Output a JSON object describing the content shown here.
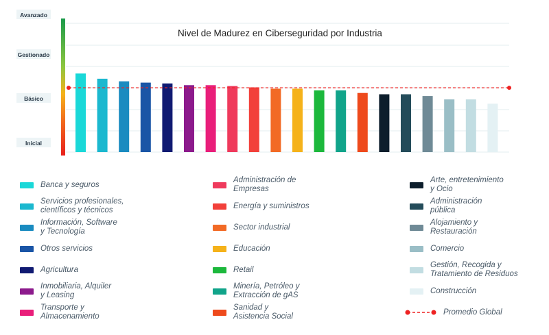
{
  "chart_data": {
    "type": "bar",
    "title": "Nivel de Madurez en Ciberseguridad por Industria",
    "y_levels": [
      "Inicial",
      "Básico",
      "Gestionado",
      "Avanzado"
    ],
    "ylim": [
      0,
      3
    ],
    "grid": true,
    "categories": [
      "Banca y seguros",
      "Servicios profesionales, científicos y técnicos",
      "Información, Software y Tecnología",
      "Otros servicios",
      "Agricultura",
      "Inmobiliaria, Alquiler y Leasing",
      "Transporte y Almacenamiento",
      "Administración de Empresas",
      "Energía y suministros",
      "Sector industrial",
      "Educación",
      "Retail",
      "Minería, Petróleo y Extracción de gAS",
      "Sanidad y Asistencia Social",
      "Arte, entretenimiento y Ocio",
      "Administración pública",
      "Alojamiento y Restauración",
      "Comercio",
      "Gestión, Recogida y Tratamiento de Residuos",
      "Construcción"
    ],
    "values": [
      1.82,
      1.7,
      1.64,
      1.61,
      1.59,
      1.55,
      1.55,
      1.53,
      1.5,
      1.47,
      1.47,
      1.43,
      1.43,
      1.37,
      1.34,
      1.34,
      1.3,
      1.22,
      1.22,
      1.12
    ],
    "colors": [
      "#1ad8d8",
      "#1bb8cf",
      "#1a8bc0",
      "#1a55a6",
      "#101a72",
      "#8c1a8c",
      "#e91e7a",
      "#ef3a5c",
      "#f2403a",
      "#f26a25",
      "#f5b21a",
      "#1cb83c",
      "#11a48a",
      "#ee4a1c",
      "#0d1e2c",
      "#244c5a",
      "#6f8a96",
      "#9abec6",
      "#c2dde2",
      "#e4f1f4"
    ],
    "average": {
      "name": "Promedio Global",
      "value": 1.49,
      "color": "#ee2222"
    }
  },
  "legend": {
    "columns": [
      [
        {
          "label": "Banca y seguros",
          "color": "#1ad8d8"
        },
        {
          "label": "Servicios profesionales,\ncientíficos y técnicos",
          "color": "#1bb8cf"
        },
        {
          "label": "Información, Software\ny Tecnología",
          "color": "#1a8bc0"
        },
        {
          "label": "Otros servicios",
          "color": "#1a55a6"
        },
        {
          "label": "Agricultura",
          "color": "#101a72"
        },
        {
          "label": "Inmobiliaria, Alquiler\ny Leasing",
          "color": "#8c1a8c"
        },
        {
          "label": "Transporte y\nAlmacenamiento",
          "color": "#e91e7a"
        }
      ],
      [
        {
          "label": "Administración de\nEmpresas",
          "color": "#ef3a5c"
        },
        {
          "label": "Energía y suministros",
          "color": "#f2403a"
        },
        {
          "label": "Sector industrial",
          "color": "#f26a25"
        },
        {
          "label": "Educación",
          "color": "#f5b21a"
        },
        {
          "label": "Retail",
          "color": "#1cb83c"
        },
        {
          "label": "Minería, Petróleo y\nExtracción de gAS",
          "color": "#11a48a"
        },
        {
          "label": "Sanidad y\nAsistencia Social",
          "color": "#ee4a1c"
        }
      ],
      [
        {
          "label": "Arte, entretenimiento\ny Ocio",
          "color": "#0d1e2c"
        },
        {
          "label": "Administración\npública",
          "color": "#244c5a"
        },
        {
          "label": "Alojamiento y\nRestauración",
          "color": "#6f8a96"
        },
        {
          "label": "Comercio",
          "color": "#9abec6"
        },
        {
          "label": "Gestión, Recogida y\nTratamiento de Residuos",
          "color": "#c2dde2"
        },
        {
          "label": "Construcción",
          "color": "#e4f1f4"
        }
      ]
    ],
    "average_label": "Promedio Global"
  }
}
